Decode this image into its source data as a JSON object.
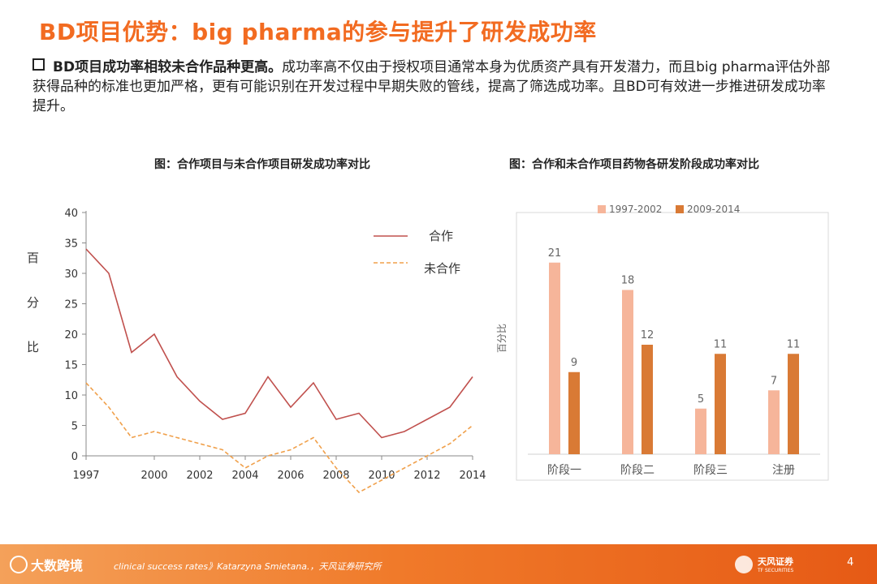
{
  "slide": {
    "title": "BD项目优势：big pharma的参与提升了研发成功率",
    "bullet_bold": "BD项目成功率相较未合作品种更高。",
    "bullet_rest": "成功率高不仅由于授权项目通常本身为优质资产具有开发潜力，而且big pharma评估外部获得品种的标准也更加严格，更有可能识别在开发过程中早期失败的管线，提高了筛选成功率。且BD可有效进一步推进研发成功率提升。"
  },
  "footer": {
    "logo_text": "大数跨境",
    "source": "clinical success rates》Katarzyna Smietana.，天风证券研究所",
    "brand": "天风证券",
    "brand_sub": "TF SECURITIES",
    "page": "4"
  },
  "colors": {
    "accent": "#f26b21",
    "line_coop": "#c0504d",
    "line_noncoop": "#f0a04b",
    "bar_early": "#f6b59a",
    "bar_late": "#d97a35"
  },
  "chart_data": [
    {
      "type": "line",
      "title": "图：合作项目与未合作项目研发成功率对比",
      "ylabel": "百分比",
      "x": [
        1997,
        1998,
        1999,
        2000,
        2001,
        2002,
        2003,
        2004,
        2005,
        2006,
        2007,
        2008,
        2009,
        2010,
        2011,
        2012,
        2013,
        2014
      ],
      "x_ticks": [
        "1997",
        "2000",
        "2002",
        "2004",
        "2006",
        "2008",
        "2010",
        "2012",
        "2014"
      ],
      "y_ticks": [
        "0",
        "5",
        "10",
        "15",
        "20",
        "25",
        "30",
        "35",
        "40"
      ],
      "ylim": [
        0,
        40
      ],
      "legend_position": "top-right",
      "series": [
        {
          "name": "合作",
          "values": [
            34,
            30,
            17,
            20,
            13,
            9,
            6,
            7,
            13,
            8,
            12,
            6,
            7,
            3,
            4,
            6,
            8,
            13
          ]
        },
        {
          "name": "未合作",
          "values": [
            12,
            8,
            3,
            4,
            3,
            2,
            1,
            -2,
            0,
            1,
            3,
            -2,
            -6,
            -4,
            -2,
            0,
            2,
            5
          ]
        }
      ]
    },
    {
      "type": "bar",
      "title": "图：合作和未合作项目药物各研发阶段成功率对比",
      "ylabel": "百分比",
      "categories": [
        "阶段一",
        "阶段二",
        "阶段三",
        "注册"
      ],
      "ylim": [
        0,
        24
      ],
      "legend_position": "top",
      "series": [
        {
          "name": "1997-2002",
          "values": [
            21,
            18,
            5,
            7
          ]
        },
        {
          "name": "2009-2014",
          "values": [
            9,
            12,
            11,
            11
          ]
        }
      ]
    }
  ]
}
